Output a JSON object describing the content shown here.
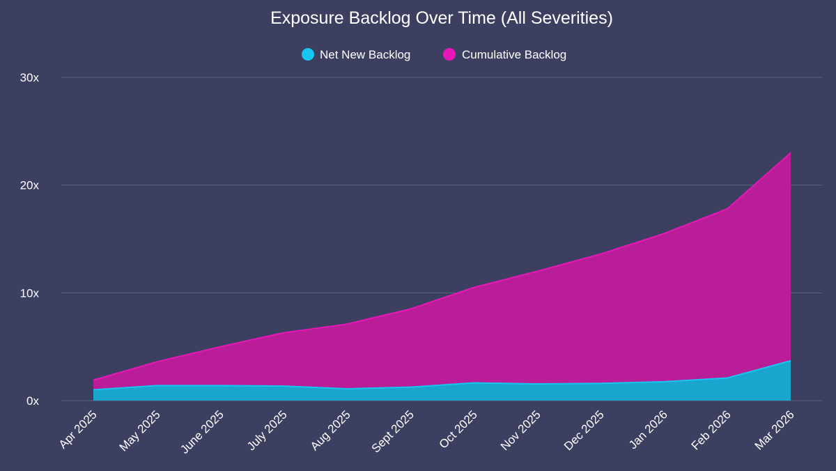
{
  "chart_data": {
    "type": "area",
    "title": "Exposure Backlog Over Time (All Severities)",
    "xlabel": "",
    "ylabel": "",
    "categories": [
      "Apr 2025",
      "May 2025",
      "June 2025",
      "July 2025",
      "Aug 2025",
      "Sept 2025",
      "Oct 2025",
      "Nov 2025",
      "Dec 2025",
      "Jan 2026",
      "Feb 2026",
      "Mar 2026"
    ],
    "y_ticks": [
      "0x",
      "10x",
      "20x",
      "30x"
    ],
    "y_tick_values": [
      0,
      10,
      20,
      30
    ],
    "ylim": [
      0,
      30
    ],
    "grid": true,
    "legend_position": "top-center",
    "series": [
      {
        "name": "Net New Backlog",
        "color": "#17c5f0",
        "fill": "#1aa6cc",
        "values": [
          1.0,
          1.4,
          1.4,
          1.35,
          1.1,
          1.25,
          1.65,
          1.55,
          1.6,
          1.75,
          2.1,
          3.7
        ]
      },
      {
        "name": "Cumulative Backlog",
        "color": "#e817b8",
        "fill": "#b91d98",
        "values": [
          1.9,
          3.6,
          5.0,
          6.3,
          7.1,
          8.5,
          10.5,
          12.0,
          13.6,
          15.5,
          17.8,
          23.0
        ]
      }
    ]
  }
}
